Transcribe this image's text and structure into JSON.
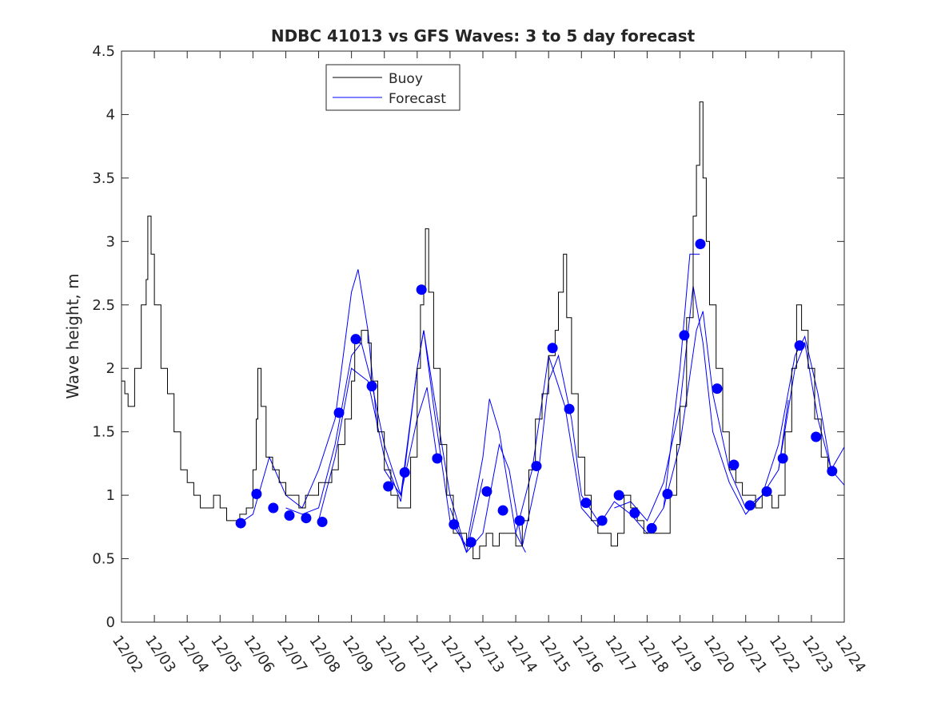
{
  "chart_data": {
    "type": "line",
    "title": "NDBC 41013 vs GFS Waves: 3 to 5 day forecast",
    "xlabel": "",
    "ylabel": "Wave height, m",
    "xlim": [
      2,
      24
    ],
    "ylim": [
      0,
      4.5
    ],
    "yticks": [
      0,
      0.5,
      1,
      1.5,
      2,
      2.5,
      3,
      3.5,
      4,
      4.5
    ],
    "ytick_labels": [
      "0",
      "0.5",
      "1",
      "1.5",
      "2",
      "2.5",
      "3",
      "3.5",
      "4",
      "4.5"
    ],
    "xtick_labels": [
      "12/02",
      "12/03",
      "12/04",
      "12/05",
      "12/06",
      "12/07",
      "12/08",
      "12/09",
      "12/10",
      "12/11",
      "12/12",
      "12/13",
      "12/14",
      "12/15",
      "12/16",
      "12/17",
      "12/18",
      "12/19",
      "12/20",
      "12/21",
      "12/22",
      "12/23",
      "12/24"
    ],
    "legend": {
      "position": "top-left-center",
      "entries": [
        "Buoy",
        "Forecast"
      ]
    },
    "colors": {
      "buoy": "#000000",
      "forecast": "#0000ff"
    },
    "buoy": [
      [
        2.0,
        1.9
      ],
      [
        2.1,
        1.8
      ],
      [
        2.2,
        1.7
      ],
      [
        2.4,
        2.0
      ],
      [
        2.6,
        2.5
      ],
      [
        2.75,
        2.7
      ],
      [
        2.8,
        3.2
      ],
      [
        2.9,
        2.9
      ],
      [
        3.0,
        2.5
      ],
      [
        3.2,
        2.0
      ],
      [
        3.4,
        1.8
      ],
      [
        3.6,
        1.5
      ],
      [
        3.8,
        1.2
      ],
      [
        4.0,
        1.1
      ],
      [
        4.2,
        1.0
      ],
      [
        4.4,
        0.9
      ],
      [
        4.6,
        0.9
      ],
      [
        4.8,
        1.0
      ],
      [
        5.0,
        0.9
      ],
      [
        5.2,
        0.8
      ],
      [
        5.4,
        0.8
      ],
      [
        5.6,
        0.85
      ],
      [
        5.8,
        0.9
      ],
      [
        6.0,
        1.2
      ],
      [
        6.1,
        1.6
      ],
      [
        6.15,
        2.0
      ],
      [
        6.25,
        1.7
      ],
      [
        6.4,
        1.3
      ],
      [
        6.6,
        1.2
      ],
      [
        6.8,
        1.1
      ],
      [
        7.0,
        1.0
      ],
      [
        7.2,
        1.0
      ],
      [
        7.4,
        0.9
      ],
      [
        7.6,
        1.0
      ],
      [
        7.8,
        1.0
      ],
      [
        8.0,
        1.1
      ],
      [
        8.2,
        1.1
      ],
      [
        8.4,
        1.2
      ],
      [
        8.6,
        1.4
      ],
      [
        8.8,
        1.6
      ],
      [
        9.0,
        1.9
      ],
      [
        9.1,
        2.2
      ],
      [
        9.3,
        2.3
      ],
      [
        9.5,
        2.2
      ],
      [
        9.6,
        1.9
      ],
      [
        9.8,
        1.5
      ],
      [
        10.0,
        1.2
      ],
      [
        10.2,
        1.0
      ],
      [
        10.4,
        0.9
      ],
      [
        10.6,
        0.9
      ],
      [
        10.8,
        1.3
      ],
      [
        11.0,
        2.0
      ],
      [
        11.1,
        2.5
      ],
      [
        11.2,
        2.6
      ],
      [
        11.25,
        3.1
      ],
      [
        11.35,
        2.6
      ],
      [
        11.5,
        2.0
      ],
      [
        11.7,
        1.4
      ],
      [
        11.9,
        1.0
      ],
      [
        12.1,
        0.7
      ],
      [
        12.3,
        0.7
      ],
      [
        12.5,
        0.6
      ],
      [
        12.7,
        0.5
      ],
      [
        12.9,
        0.6
      ],
      [
        13.1,
        0.7
      ],
      [
        13.3,
        0.6
      ],
      [
        13.5,
        0.7
      ],
      [
        13.8,
        0.7
      ],
      [
        14.0,
        0.6
      ],
      [
        14.2,
        0.8
      ],
      [
        14.4,
        1.2
      ],
      [
        14.6,
        1.6
      ],
      [
        14.8,
        1.8
      ],
      [
        15.0,
        2.1
      ],
      [
        15.2,
        2.3
      ],
      [
        15.3,
        2.6
      ],
      [
        15.45,
        2.9
      ],
      [
        15.55,
        2.4
      ],
      [
        15.7,
        1.8
      ],
      [
        15.9,
        1.3
      ],
      [
        16.1,
        1.0
      ],
      [
        16.3,
        0.8
      ],
      [
        16.5,
        0.7
      ],
      [
        16.7,
        0.7
      ],
      [
        16.9,
        0.6
      ],
      [
        17.1,
        0.7
      ],
      [
        17.3,
        1.0
      ],
      [
        17.5,
        0.9
      ],
      [
        17.7,
        0.8
      ],
      [
        17.9,
        0.7
      ],
      [
        18.1,
        0.7
      ],
      [
        18.3,
        0.7
      ],
      [
        18.5,
        0.7
      ],
      [
        18.7,
        1.0
      ],
      [
        18.9,
        1.4
      ],
      [
        19.0,
        1.7
      ],
      [
        19.2,
        2.4
      ],
      [
        19.4,
        3.2
      ],
      [
        19.5,
        3.6
      ],
      [
        19.6,
        4.1
      ],
      [
        19.7,
        3.5
      ],
      [
        19.8,
        3.0
      ],
      [
        19.9,
        2.5
      ],
      [
        20.1,
        2.0
      ],
      [
        20.3,
        1.5
      ],
      [
        20.5,
        1.2
      ],
      [
        20.7,
        1.1
      ],
      [
        20.9,
        1.0
      ],
      [
        21.1,
        1.0
      ],
      [
        21.3,
        0.9
      ],
      [
        21.5,
        1.0
      ],
      [
        21.8,
        0.9
      ],
      [
        22.0,
        1.0
      ],
      [
        22.2,
        1.5
      ],
      [
        22.4,
        2.0
      ],
      [
        22.55,
        2.5
      ],
      [
        22.7,
        2.3
      ],
      [
        22.9,
        2.0
      ],
      [
        23.1,
        1.6
      ],
      [
        23.3,
        1.3
      ],
      [
        23.5,
        1.2
      ],
      [
        23.7,
        1.2
      ]
    ],
    "forecast_markers": [
      [
        5.63,
        0.78
      ],
      [
        6.11,
        1.01
      ],
      [
        6.62,
        0.9
      ],
      [
        7.11,
        0.84
      ],
      [
        7.62,
        0.82
      ],
      [
        8.11,
        0.79
      ],
      [
        8.62,
        1.65
      ],
      [
        9.13,
        2.23
      ],
      [
        9.62,
        1.86
      ],
      [
        10.12,
        1.07
      ],
      [
        10.62,
        1.18
      ],
      [
        11.13,
        2.62
      ],
      [
        11.61,
        1.29
      ],
      [
        12.12,
        0.77
      ],
      [
        12.64,
        0.63
      ],
      [
        13.12,
        1.03
      ],
      [
        13.61,
        0.88
      ],
      [
        14.12,
        0.8
      ],
      [
        14.63,
        1.23
      ],
      [
        15.12,
        2.16
      ],
      [
        15.63,
        1.68
      ],
      [
        16.14,
        0.94
      ],
      [
        16.63,
        0.8
      ],
      [
        17.14,
        1.0
      ],
      [
        17.62,
        0.86
      ],
      [
        18.14,
        0.74
      ],
      [
        18.62,
        1.01
      ],
      [
        19.13,
        2.26
      ],
      [
        19.62,
        2.98
      ],
      [
        20.13,
        1.84
      ],
      [
        20.64,
        1.24
      ],
      [
        21.13,
        0.92
      ],
      [
        21.64,
        1.03
      ],
      [
        22.13,
        1.29
      ],
      [
        22.64,
        2.18
      ],
      [
        23.14,
        1.46
      ],
      [
        23.63,
        1.19
      ]
    ],
    "forecast_runs": [
      [
        [
          5.6,
          0.78
        ],
        [
          6.0,
          0.85
        ],
        [
          6.5,
          1.3
        ],
        [
          7.0,
          1.0
        ],
        [
          7.5,
          0.9
        ],
        [
          8.0,
          1.2
        ],
        [
          8.5,
          1.6
        ],
        [
          9.0,
          2.6
        ],
        [
          9.2,
          2.78
        ],
        [
          9.5,
          2.3
        ],
        [
          9.8,
          1.5
        ]
      ],
      [
        [
          7.0,
          0.9
        ],
        [
          7.5,
          0.85
        ],
        [
          8.0,
          0.9
        ],
        [
          8.5,
          1.4
        ],
        [
          9.0,
          2.1
        ],
        [
          9.3,
          2.2
        ],
        [
          9.6,
          1.9
        ],
        [
          10.0,
          1.4
        ],
        [
          10.5,
          1.0
        ],
        [
          11.0,
          1.6
        ],
        [
          11.3,
          1.85
        ],
        [
          11.6,
          1.3
        ]
      ],
      [
        [
          8.0,
          0.8
        ],
        [
          8.5,
          1.3
        ],
        [
          9.0,
          2.0
        ],
        [
          9.5,
          1.9
        ],
        [
          10.0,
          1.3
        ],
        [
          10.5,
          0.95
        ],
        [
          11.0,
          2.0
        ],
        [
          11.2,
          2.3
        ],
        [
          11.5,
          1.8
        ],
        [
          12.0,
          1.0
        ],
        [
          12.5,
          0.55
        ],
        [
          13.0,
          1.13
        ]
      ],
      [
        [
          10.0,
          1.2
        ],
        [
          10.5,
          1.0
        ],
        [
          11.0,
          2.0
        ],
        [
          11.2,
          2.3
        ],
        [
          11.5,
          1.7
        ],
        [
          12.0,
          0.8
        ],
        [
          12.5,
          0.6
        ],
        [
          13.0,
          1.3
        ],
        [
          13.2,
          1.76
        ],
        [
          13.5,
          1.5
        ],
        [
          14.0,
          0.7
        ],
        [
          14.3,
          0.55
        ]
      ],
      [
        [
          12.0,
          0.9
        ],
        [
          12.5,
          0.55
        ],
        [
          13.0,
          0.7
        ],
        [
          13.5,
          1.4
        ],
        [
          13.8,
          1.2
        ],
        [
          14.2,
          0.6
        ],
        [
          14.7,
          1.2
        ],
        [
          15.0,
          1.9
        ],
        [
          15.3,
          2.1
        ],
        [
          15.7,
          1.6
        ],
        [
          16.0,
          1.0
        ],
        [
          16.5,
          0.8
        ]
      ],
      [
        [
          14.0,
          0.7
        ],
        [
          14.5,
          1.2
        ],
        [
          15.0,
          2.1
        ],
        [
          15.5,
          1.7
        ],
        [
          16.0,
          0.9
        ],
        [
          16.5,
          0.75
        ],
        [
          17.0,
          0.95
        ],
        [
          17.5,
          0.85
        ],
        [
          18.0,
          0.7
        ],
        [
          18.5,
          0.9
        ],
        [
          19.0,
          2.0
        ],
        [
          19.3,
          2.9
        ],
        [
          19.6,
          2.9
        ]
      ],
      [
        [
          17.0,
          0.9
        ],
        [
          17.5,
          0.95
        ],
        [
          18.0,
          0.8
        ],
        [
          18.5,
          1.1
        ],
        [
          19.0,
          1.7
        ],
        [
          19.4,
          2.65
        ],
        [
          19.7,
          2.2
        ],
        [
          20.0,
          1.5
        ],
        [
          20.5,
          1.1
        ],
        [
          21.0,
          0.85
        ],
        [
          21.5,
          1.0
        ]
      ],
      [
        [
          18.5,
          0.9
        ],
        [
          19.0,
          1.4
        ],
        [
          19.5,
          2.3
        ],
        [
          19.7,
          2.45
        ],
        [
          20.0,
          1.8
        ],
        [
          20.5,
          1.2
        ],
        [
          21.0,
          0.9
        ],
        [
          21.5,
          1.0
        ],
        [
          22.0,
          1.2
        ],
        [
          22.3,
          1.75
        ]
      ],
      [
        [
          21.0,
          0.85
        ],
        [
          21.5,
          1.0
        ],
        [
          22.0,
          1.4
        ],
        [
          22.5,
          2.1
        ],
        [
          22.8,
          2.25
        ],
        [
          23.2,
          1.8
        ],
        [
          23.6,
          1.2
        ],
        [
          24.0,
          1.08
        ]
      ],
      [
        [
          22.0,
          1.2
        ],
        [
          22.5,
          2.0
        ],
        [
          22.8,
          2.2
        ],
        [
          23.2,
          1.6
        ],
        [
          23.6,
          1.2
        ],
        [
          24.0,
          1.38
        ]
      ]
    ]
  }
}
